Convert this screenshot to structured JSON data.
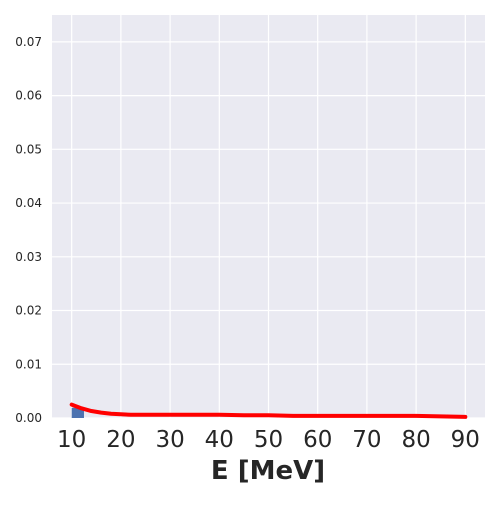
{
  "chart_data": {
    "type": "line",
    "title": "",
    "xlabel": "E [MeV]",
    "ylabel": "",
    "xlim": [
      6,
      94
    ],
    "ylim": [
      0,
      0.075
    ],
    "xticks": [
      "10",
      "20",
      "30",
      "40",
      "50",
      "60",
      "70",
      "80",
      "90"
    ],
    "yticks": [
      "0.00",
      "0.01",
      "0.02",
      "0.03",
      "0.04",
      "0.05",
      "0.06",
      "0.07"
    ],
    "grid": true,
    "legend": "none",
    "colors": {
      "background": "#eaeaf2",
      "grid": "#ffffff",
      "histogram": "#4c72b0",
      "curve": "#ff0000"
    },
    "histogram": {
      "bin_edges": [
        10,
        12.5
      ],
      "values": [
        0.0019
      ]
    },
    "series": [
      {
        "x": [
          10,
          12,
          14,
          16,
          18,
          20,
          22,
          25,
          30,
          35,
          40,
          45,
          50,
          55,
          60,
          65,
          70,
          75,
          80,
          85,
          90
        ],
        "y": [
          0.0025,
          0.0018,
          0.0013,
          0.001,
          0.0008,
          0.0007,
          0.0006,
          0.0006,
          0.0006,
          0.0006,
          0.0006,
          0.0005,
          0.0005,
          0.0004,
          0.0004,
          0.0004,
          0.0004,
          0.0004,
          0.0004,
          0.0003,
          0.0002
        ]
      }
    ]
  }
}
